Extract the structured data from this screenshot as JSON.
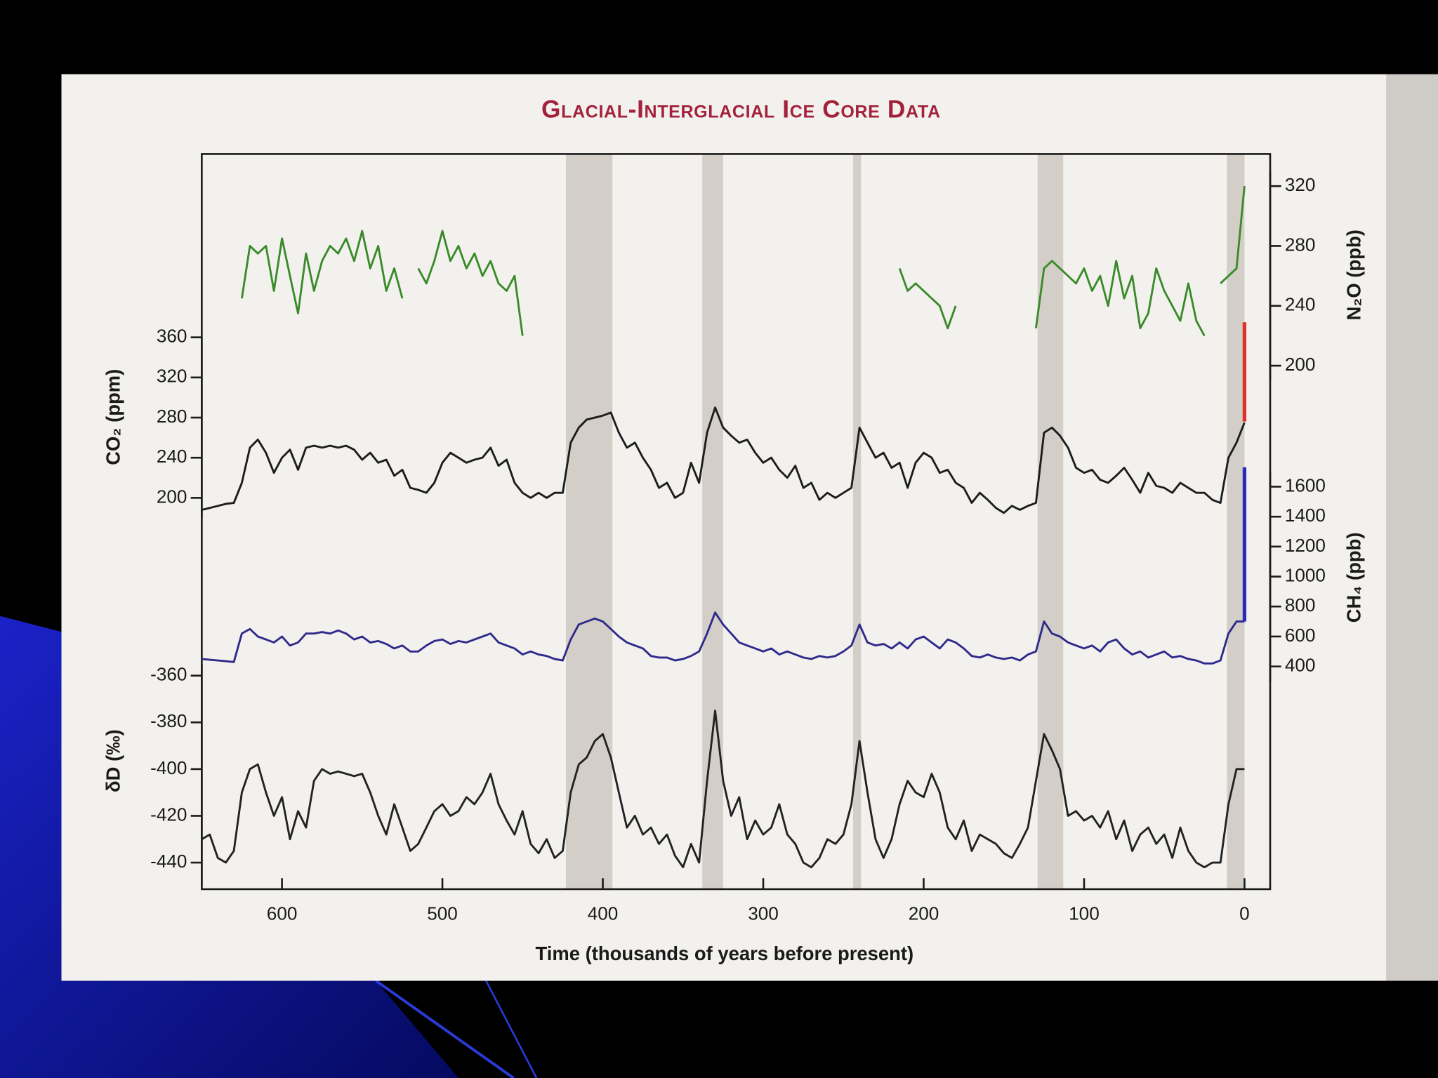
{
  "chart_data": {
    "type": "line",
    "title": "Glacial-Interglacial Ice Core Data",
    "xlabel": "Time (thousands of years before present)",
    "xlim": [
      650,
      -16
    ],
    "xticks": [
      600,
      500,
      400,
      300,
      200,
      100,
      0
    ],
    "shaded_spans": [
      [
        423,
        394
      ],
      [
        338,
        325
      ],
      [
        244,
        239
      ],
      [
        129,
        113
      ],
      [
        11,
        0
      ]
    ],
    "shade_color": "#d3cfc8",
    "x": [
      650,
      645,
      640,
      635,
      630,
      625,
      620,
      615,
      610,
      605,
      600,
      595,
      590,
      585,
      580,
      575,
      570,
      565,
      560,
      555,
      550,
      545,
      540,
      535,
      530,
      525,
      520,
      515,
      510,
      505,
      500,
      495,
      490,
      485,
      480,
      475,
      470,
      465,
      460,
      455,
      450,
      445,
      440,
      435,
      430,
      425,
      420,
      415,
      410,
      405,
      400,
      395,
      390,
      385,
      380,
      375,
      370,
      365,
      360,
      355,
      350,
      345,
      340,
      335,
      330,
      325,
      320,
      315,
      310,
      305,
      300,
      295,
      290,
      285,
      280,
      275,
      270,
      265,
      260,
      255,
      250,
      245,
      240,
      235,
      230,
      225,
      220,
      215,
      210,
      205,
      200,
      195,
      190,
      185,
      180,
      175,
      170,
      165,
      160,
      155,
      150,
      145,
      140,
      135,
      130,
      125,
      120,
      115,
      110,
      105,
      100,
      95,
      90,
      85,
      80,
      75,
      70,
      65,
      60,
      55,
      50,
      45,
      40,
      35,
      30,
      25,
      20,
      15,
      10,
      5,
      0
    ],
    "panels": [
      {
        "ylabel": "CO₂ (ppm)",
        "side": "left",
        "ylim": [
          180,
          360
        ],
        "yticks": [
          200,
          240,
          280,
          320,
          360
        ],
        "series": [
          {
            "color": "#1c1c1c",
            "values": [
              188,
              190,
              192,
              194,
              195,
              215,
              250,
              258,
              245,
              225,
              240,
              248,
              228,
              250,
              252,
              250,
              252,
              250,
              252,
              248,
              238,
              245,
              235,
              238,
              222,
              228,
              210,
              208,
              205,
              215,
              235,
              245,
              240,
              235,
              238,
              240,
              250,
              232,
              238,
              215,
              205,
              200,
              205,
              200,
              205,
              205,
              255,
              270,
              278,
              280,
              282,
              285,
              265,
              250,
              255,
              240,
              228,
              210,
              215,
              200,
              205,
              235,
              215,
              265,
              290,
              270,
              262,
              255,
              258,
              245,
              235,
              240,
              228,
              220,
              232,
              210,
              215,
              198,
              205,
              200,
              205,
              210,
              270,
              255,
              240,
              245,
              230,
              235,
              210,
              235,
              245,
              240,
              225,
              228,
              215,
              210,
              195,
              205,
              198,
              190,
              185,
              192,
              188,
              192,
              195,
              265,
              270,
              262,
              250,
              230,
              225,
              228,
              218,
              215,
              222,
              230,
              218,
              205,
              225,
              212,
              210,
              205,
              215,
              210,
              205,
              205,
              198,
              195,
              240,
              255,
              275
            ]
          },
          {
            "color": "#e0302a",
            "x": [
              0,
              0
            ],
            "values": [
              276,
              375
            ]
          }
        ]
      },
      {
        "ylabel": "N₂O (ppb)",
        "side": "right",
        "ylim": [
          190,
          330
        ],
        "yticks": [
          200,
          240,
          280,
          320
        ],
        "series": [
          {
            "color": "#3a8a2a",
            "values": [
              null,
              null,
              null,
              null,
              null,
              245,
              280,
              275,
              280,
              250,
              285,
              260,
              235,
              275,
              250,
              270,
              280,
              275,
              285,
              270,
              290,
              265,
              280,
              250,
              265,
              245,
              null,
              265,
              255,
              270,
              290,
              270,
              280,
              265,
              275,
              260,
              270,
              255,
              250,
              260,
              220,
              null,
              null,
              null,
              null,
              null,
              null,
              null,
              null,
              null,
              null,
              null,
              null,
              null,
              null,
              null,
              null,
              null,
              null,
              null,
              null,
              null,
              null,
              null,
              null,
              null,
              null,
              null,
              null,
              null,
              null,
              null,
              null,
              null,
              null,
              null,
              null,
              null,
              null,
              null,
              null,
              null,
              null,
              null,
              null,
              null,
              null,
              265,
              250,
              255,
              250,
              245,
              240,
              225,
              240,
              null,
              null,
              null,
              null,
              null,
              null,
              null,
              null,
              null,
              225,
              265,
              270,
              265,
              260,
              255,
              265,
              250,
              260,
              240,
              270,
              245,
              260,
              225,
              235,
              265,
              250,
              240,
              230,
              255,
              230,
              220,
              null,
              255,
              260,
              265,
              320
            ]
          }
        ]
      },
      {
        "ylabel": "CH₄ (ppb)",
        "side": "right",
        "ylim": [
          300,
          1700
        ],
        "yticks": [
          400,
          600,
          800,
          1000,
          1200,
          1400,
          1600
        ],
        "series": [
          {
            "color": "#2e2a8a",
            "values": [
              450,
              445,
              440,
              435,
              430,
              620,
              650,
              600,
              580,
              560,
              600,
              540,
              560,
              620,
              620,
              630,
              620,
              640,
              620,
              580,
              600,
              560,
              570,
              550,
              520,
              540,
              500,
              500,
              540,
              570,
              580,
              550,
              570,
              560,
              580,
              600,
              620,
              560,
              540,
              520,
              480,
              500,
              480,
              470,
              450,
              440,
              580,
              680,
              700,
              720,
              700,
              650,
              600,
              560,
              540,
              520,
              470,
              460,
              460,
              440,
              450,
              470,
              500,
              620,
              760,
              680,
              620,
              560,
              540,
              520,
              500,
              520,
              480,
              500,
              480,
              460,
              450,
              470,
              460,
              470,
              500,
              540,
              680,
              560,
              540,
              550,
              520,
              560,
              520,
              580,
              600,
              560,
              520,
              580,
              560,
              520,
              470,
              460,
              480,
              460,
              450,
              460,
              440,
              480,
              500,
              700,
              620,
              600,
              560,
              540,
              520,
              540,
              500,
              560,
              580,
              520,
              480,
              500,
              460,
              480,
              500,
              460,
              470,
              450,
              440,
              420,
              420,
              440,
              620,
              700,
              700
            ]
          },
          {
            "color": "#2a2ab8",
            "x": [
              0,
              0
            ],
            "values": [
              700,
              1730
            ]
          }
        ]
      },
      {
        "ylabel": "δD (‰)",
        "side": "left",
        "ylim": [
          -450,
          -355
        ],
        "yticks": [
          -360,
          -380,
          -400,
          -420,
          -440
        ],
        "series": [
          {
            "color": "#222222",
            "values": [
              -430,
              -428,
              -438,
              -440,
              -435,
              -410,
              -400,
              -398,
              -410,
              -420,
              -412,
              -430,
              -418,
              -425,
              -405,
              -400,
              -402,
              -401,
              -402,
              -403,
              -402,
              -410,
              -420,
              -428,
              -415,
              -425,
              -435,
              -432,
              -425,
              -418,
              -415,
              -420,
              -418,
              -412,
              -415,
              -410,
              -402,
              -415,
              -422,
              -428,
              -418,
              -432,
              -436,
              -430,
              -438,
              -435,
              -410,
              -398,
              -395,
              -388,
              -385,
              -395,
              -410,
              -425,
              -420,
              -428,
              -425,
              -432,
              -428,
              -437,
              -442,
              -432,
              -440,
              -405,
              -375,
              -405,
              -420,
              -412,
              -430,
              -422,
              -428,
              -425,
              -415,
              -428,
              -432,
              -440,
              -442,
              -438,
              -430,
              -432,
              -428,
              -415,
              -388,
              -410,
              -430,
              -438,
              -430,
              -415,
              -405,
              -410,
              -412,
              -402,
              -410,
              -425,
              -430,
              -422,
              -435,
              -428,
              -430,
              -432,
              -436,
              -438,
              -432,
              -425,
              -405,
              -385,
              -392,
              -400,
              -420,
              -418,
              -422,
              -420,
              -425,
              -418,
              -430,
              -422,
              -435,
              -428,
              -425,
              -432,
              -428,
              -438,
              -425,
              -435,
              -440,
              -442,
              -440,
              -440,
              -415,
              -400,
              -400
            ]
          }
        ]
      }
    ]
  }
}
